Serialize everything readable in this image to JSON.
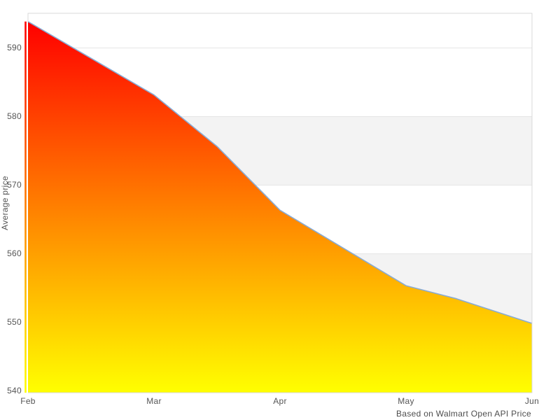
{
  "chart_data": {
    "type": "area",
    "title": "",
    "ylabel": "Average price",
    "xlabel": "",
    "caption": "Based on Walmart Open API Price",
    "legend": "none",
    "categories": [
      "Feb",
      "Mar",
      "Apr",
      "May",
      "Jun"
    ],
    "category_positions": [
      0,
      1,
      2,
      3,
      4
    ],
    "series": [
      {
        "name": "Average price",
        "points": [
          [
            0,
            593.8
          ],
          [
            1,
            583.1
          ],
          [
            1.5,
            575.6
          ],
          [
            2,
            566.3
          ],
          [
            3,
            555.3
          ],
          [
            3.4,
            553.4
          ],
          [
            4,
            549.8
          ]
        ]
      }
    ],
    "yticks": [
      540,
      550,
      560,
      570,
      580,
      590
    ],
    "ylim": [
      539.7,
      595.0
    ],
    "xlim": [
      0,
      4
    ],
    "grid": "horizontal-only",
    "plot_bands": [
      [
        550,
        560
      ],
      [
        570,
        580
      ]
    ],
    "colors": {
      "line": "#88abd4",
      "area_gradient_top": "#ff0000",
      "area_gradient_bottom": "#ffff00",
      "band": "#f3f3f3",
      "gridline": "#e6e6e6",
      "plot_border": "#d9d9d9",
      "tick_text": "#555555",
      "caption_text": "#4d4d4d",
      "background": "#ffffff"
    }
  }
}
